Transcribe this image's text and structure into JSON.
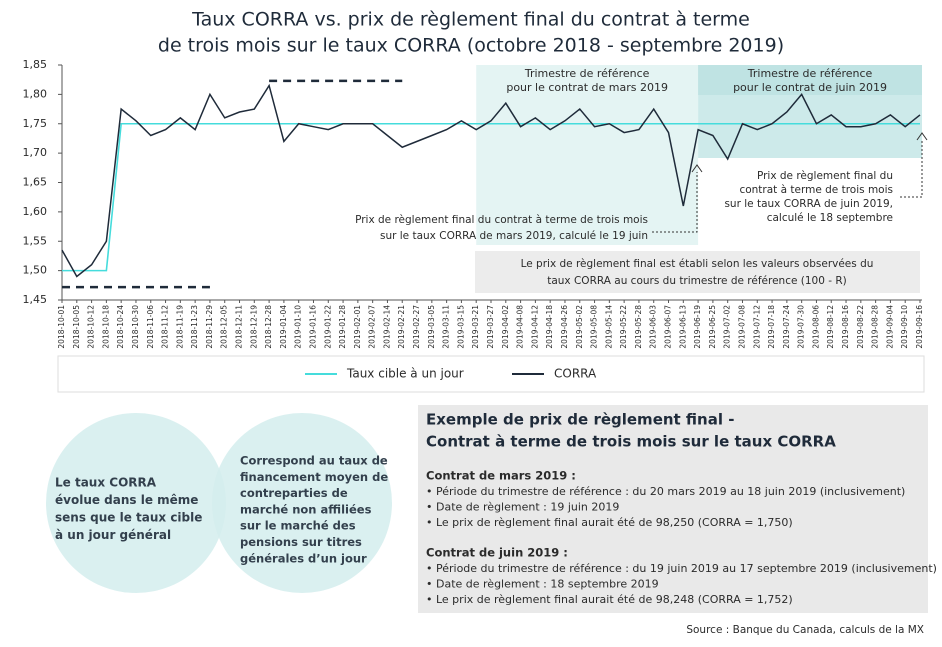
{
  "chart_data": {
    "type": "line",
    "title": [
      "Taux CORRA vs. prix de règlement final du contrat à terme",
      "de trois mois sur le taux CORRA (octobre 2018 - septembre 2019)"
    ],
    "categories": [
      "2018-10-01",
      "2018-10-05",
      "2018-10-12",
      "2018-10-18",
      "2018-10-24",
      "2018-10-30",
      "2018-11-06",
      "2018-11-12",
      "2018-11-19",
      "2018-11-23",
      "2018-11-29",
      "2018-12-05",
      "2018-12-11",
      "2018-12-19",
      "2018-12-28",
      "2019-01-04",
      "2019-01-10",
      "2019-01-16",
      "2019-01-22",
      "2019-01-28",
      "2019-02-01",
      "2019-02-07",
      "2019-02-14",
      "2019-02-21",
      "2019-02-27",
      "2019-03-05",
      "2019-03-11",
      "2019-03-15",
      "2019-03-21",
      "2019-03-27",
      "2019-04-02",
      "2019-04-08",
      "2019-04-12",
      "2019-04-18",
      "2019-04-26",
      "2019-05-02",
      "2019-05-08",
      "2019-05-14",
      "2019-05-22",
      "2019-05-28",
      "2019-06-03",
      "2019-06-07",
      "2019-06-13",
      "2019-06-19",
      "2019-06-25",
      "2019-07-02",
      "2019-07-08",
      "2019-07-12",
      "2019-07-18",
      "2019-07-24",
      "2019-07-30",
      "2019-08-06",
      "2019-08-12",
      "2019-08-16",
      "2019-08-22",
      "2019-08-28",
      "2019-09-04",
      "2019-09-10",
      "2019-09-16"
    ],
    "series": [
      {
        "name": "Taux cible à un jour",
        "color": "#45dcdc",
        "values": [
          1.5,
          1.5,
          1.5,
          1.5,
          1.75,
          1.75,
          1.75,
          1.75,
          1.75,
          1.75,
          1.75,
          1.75,
          1.75,
          1.75,
          1.75,
          1.75,
          1.75,
          1.75,
          1.75,
          1.75,
          1.75,
          1.75,
          1.75,
          1.75,
          1.75,
          1.75,
          1.75,
          1.75,
          1.75,
          1.75,
          1.75,
          1.75,
          1.75,
          1.75,
          1.75,
          1.75,
          1.75,
          1.75,
          1.75,
          1.75,
          1.75,
          1.75,
          1.75,
          1.75,
          1.75,
          1.75,
          1.75,
          1.75,
          1.75,
          1.75,
          1.75,
          1.75,
          1.75,
          1.75,
          1.75,
          1.75,
          1.75,
          1.75,
          1.75
        ]
      },
      {
        "name": "CORRA",
        "color": "#1f2b3a",
        "values": [
          1.535,
          1.49,
          1.51,
          1.55,
          1.775,
          1.755,
          1.73,
          1.74,
          1.76,
          1.74,
          1.8,
          1.76,
          1.77,
          1.775,
          1.815,
          1.72,
          1.75,
          1.745,
          1.74,
          1.75,
          1.75,
          1.75,
          1.73,
          1.71,
          1.72,
          1.73,
          1.74,
          1.755,
          1.74,
          1.755,
          1.785,
          1.745,
          1.76,
          1.74,
          1.755,
          1.775,
          1.745,
          1.75,
          1.735,
          1.74,
          1.775,
          1.735,
          1.61,
          1.74,
          1.73,
          1.69,
          1.75,
          1.74,
          1.75,
          1.77,
          1.8,
          1.75,
          1.765,
          1.745,
          1.745,
          1.75,
          1.765,
          1.745,
          1.765
        ]
      }
    ],
    "ylim": [
      1.45,
      1.85
    ],
    "yticks": [
      {
        "value": 1.45,
        "label": "1,45"
      },
      {
        "value": 1.5,
        "label": "1,50"
      },
      {
        "value": 1.55,
        "label": "1,55"
      },
      {
        "value": 1.6,
        "label": "1,60"
      },
      {
        "value": 1.65,
        "label": "1,65"
      },
      {
        "value": 1.7,
        "label": "1,70"
      },
      {
        "value": 1.75,
        "label": "1,75"
      },
      {
        "value": 1.8,
        "label": "1,80"
      },
      {
        "value": 1.85,
        "label": "1,85"
      }
    ],
    "grid": false,
    "legend": "bottom",
    "reference_lines": [
      {
        "value": 1.472,
        "from": "2018-10-01",
        "to": "2018-11-29"
      },
      {
        "value": 1.823,
        "from": "2018-12-28",
        "to": "2019-02-21"
      }
    ],
    "regions": [
      {
        "label": [
          "Trimestre de référence",
          "pour le contrat de mars 2019"
        ],
        "from": "2019-03-21",
        "to": "2019-06-19",
        "color": "#e4f4f3"
      },
      {
        "label": [
          "Trimestre de référence",
          "pour le contrat de juin 2019"
        ],
        "from": "2019-06-19",
        "to": "2019-09-16",
        "color": "#cdeaea"
      }
    ],
    "annotations": [
      {
        "text": [
          "Prix de règlement final du contrat à terme de trois mois",
          "sur le taux CORRA de mars 2019, calculé le 19 juin"
        ]
      },
      {
        "text": [
          "Prix de règlement final du",
          "contrat à terme de trois mois",
          "sur le taux CORRA de juin 2019,",
          "calculé le 18 septembre"
        ]
      },
      {
        "text": [
          "Le prix de règlement final est établi selon les valeurs observées du",
          "taux CORRA au cours du trimestre de référence (100 - R)"
        ]
      }
    ]
  },
  "diagram": {
    "circles": [
      {
        "text": [
          "Le taux CORRA",
          "évolue dans le même",
          "sens que le taux cible",
          "à un jour général"
        ]
      },
      {
        "text": [
          "Correspond au taux de",
          "financement moyen de",
          "contreparties de",
          "marché non affiliées",
          "sur le marché des",
          "pensions sur titres",
          "générales d’un jour"
        ]
      }
    ]
  },
  "example": {
    "title": [
      "Exemple de prix de règlement final -",
      "Contrat à terme de trois mois sur le taux CORRA"
    ],
    "sections": [
      {
        "heading": "Contrat de mars 2019 :",
        "items": [
          "• Période du trimestre de référence : du 20 mars 2019 au 18 juin 2019 (inclusivement)",
          "• Date de règlement : 19 juin 2019",
          "• Le prix de règlement final aurait été de 98,250 (CORRA = 1,750)"
        ]
      },
      {
        "heading": "Contrat de juin 2019 :",
        "items": [
          "• Période du trimestre de référence  : du 19 juin 2019 au 17 septembre 2019 (inclusivement)",
          "• Date de règlement : 18 septembre 2019",
          "• Le prix de règlement final aurait été de 98,248 (CORRA = 1,752)"
        ]
      }
    ]
  },
  "source": "Source : Banque du Canada, calculs de la MX"
}
